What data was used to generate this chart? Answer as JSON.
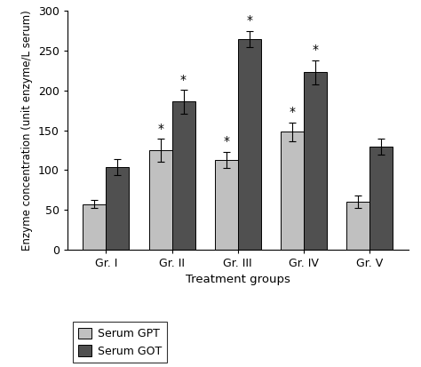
{
  "groups": [
    "Gr. I",
    "Gr. II",
    "Gr. III",
    "Gr. IV",
    "Gr. V"
  ],
  "gpt_values": [
    57,
    125,
    113,
    148,
    60
  ],
  "got_values": [
    104,
    186,
    265,
    223,
    129
  ],
  "gpt_errors": [
    5,
    14,
    10,
    12,
    8
  ],
  "got_errors": [
    10,
    15,
    10,
    15,
    10
  ],
  "gpt_color": "#c0c0c0",
  "got_color": "#505050",
  "bar_width": 0.35,
  "ylabel": "Enzyme concentration (unit enzyme/L serum)",
  "xlabel": "Treatment groups",
  "ylim": [
    0,
    300
  ],
  "yticks": [
    0,
    50,
    100,
    150,
    200,
    250,
    300
  ],
  "legend_labels": [
    "Serum GPT",
    "Serum GOT"
  ],
  "significance_gpt": [
    false,
    true,
    true,
    true,
    false
  ],
  "significance_got": [
    false,
    true,
    true,
    true,
    false
  ],
  "background_color": "#ffffff"
}
